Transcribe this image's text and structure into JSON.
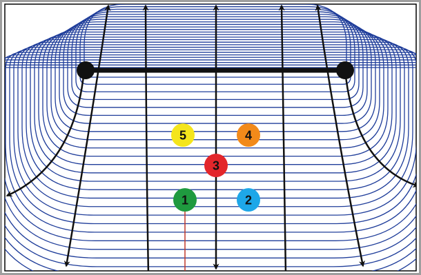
{
  "colors": {
    "frame_outer": "#9e9e9e",
    "frame_inner": "#000000",
    "background": "#ffffff",
    "equipotential": "#1f3d9a",
    "field_line": "#111111",
    "electrode": "#111111",
    "probe_line": "#c0392b"
  },
  "markers": [
    {
      "label": "5",
      "color": "#f4e51c",
      "text_color": "#111111"
    },
    {
      "label": "4",
      "color": "#f28a1a",
      "text_color": "#111111"
    },
    {
      "label": "3",
      "color": "#e3262b",
      "text_color": "#111111"
    },
    {
      "label": "1",
      "color": "#1f9a3f",
      "text_color": "#111111"
    },
    {
      "label": "2",
      "color": "#1ea7e8",
      "text_color": "#111111"
    }
  ]
}
